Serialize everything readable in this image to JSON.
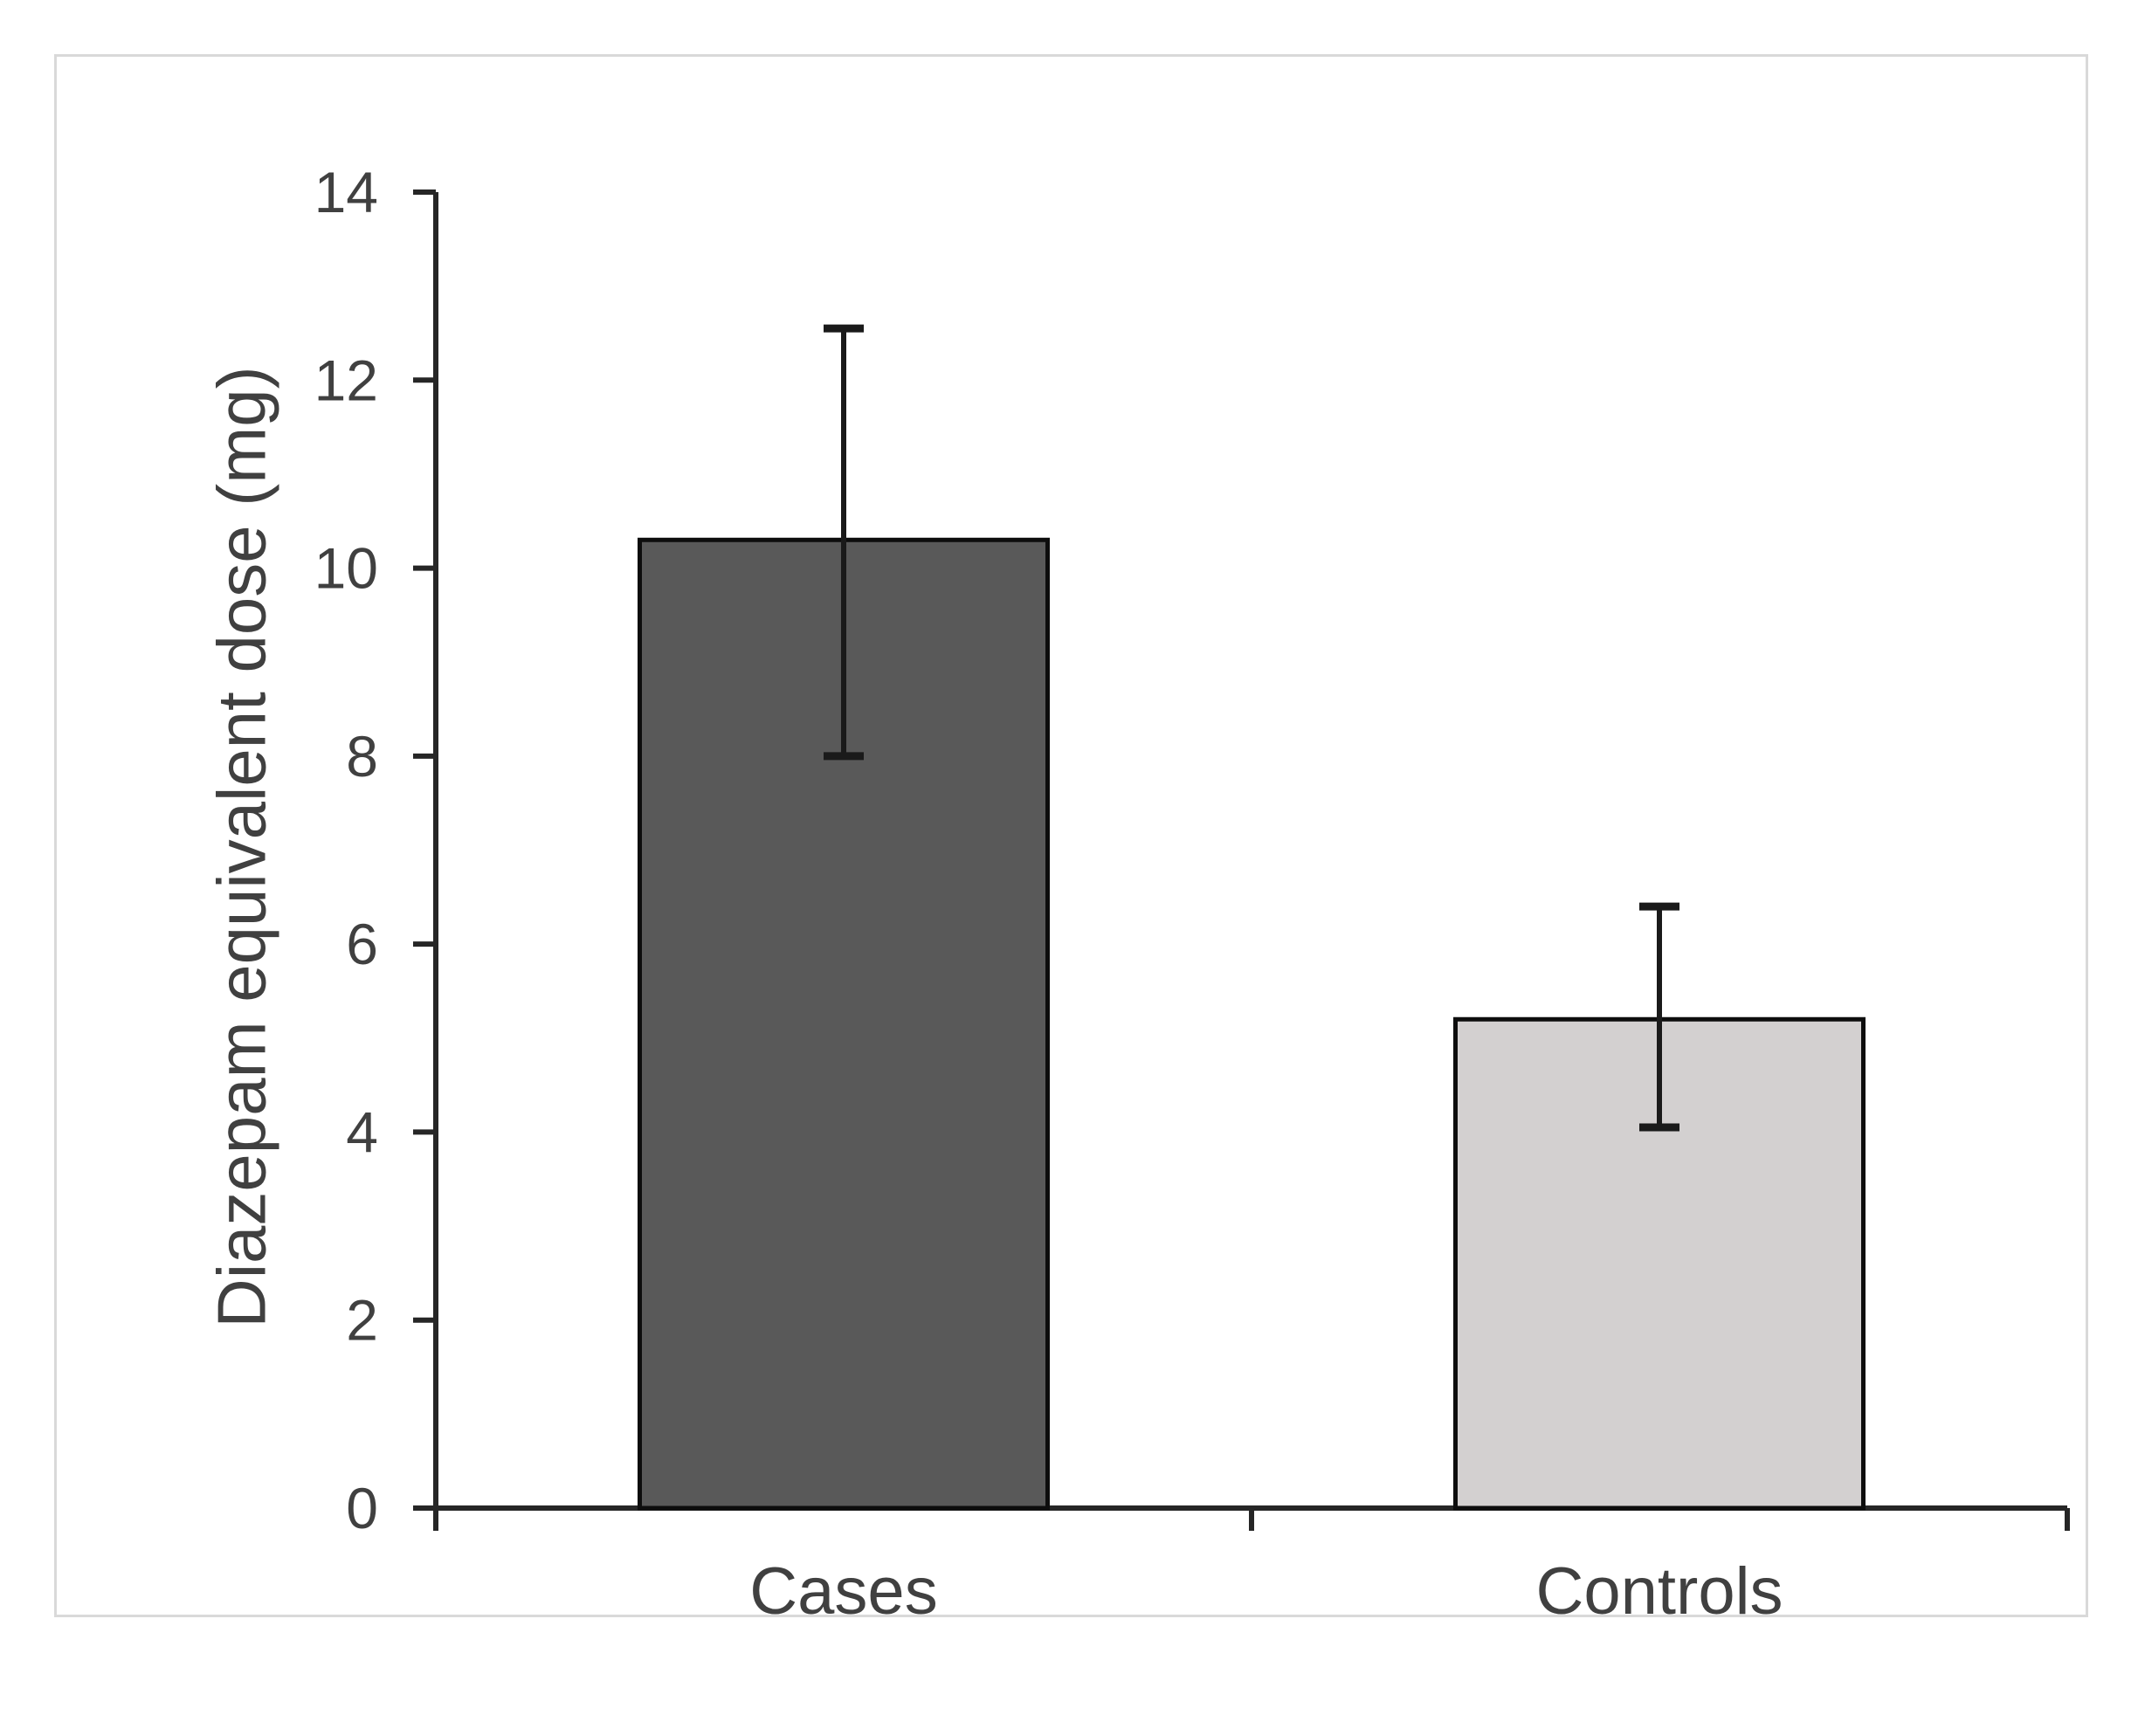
{
  "chart_data": {
    "type": "bar",
    "categories": [
      "Cases",
      "Controls"
    ],
    "values": [
      10.3,
      5.2
    ],
    "error_bars": {
      "upper": [
        12.55,
        6.4
      ],
      "lower": [
        8.0,
        4.05
      ]
    },
    "title": "",
    "xlabel": "",
    "ylabel": "Diazepam equivalent dose (mg)",
    "ylim": [
      0,
      14
    ],
    "yticks": [
      0,
      2,
      4,
      6,
      8,
      10,
      12,
      14
    ],
    "grid": false,
    "legend": false,
    "bar_colors": [
      "#595959",
      "#d3d0d0"
    ],
    "bar_edge_color": "#0d0d0d",
    "error_bar_color": "#1a1a1a",
    "axis_color": "#262626",
    "label_color": "#404040"
  }
}
